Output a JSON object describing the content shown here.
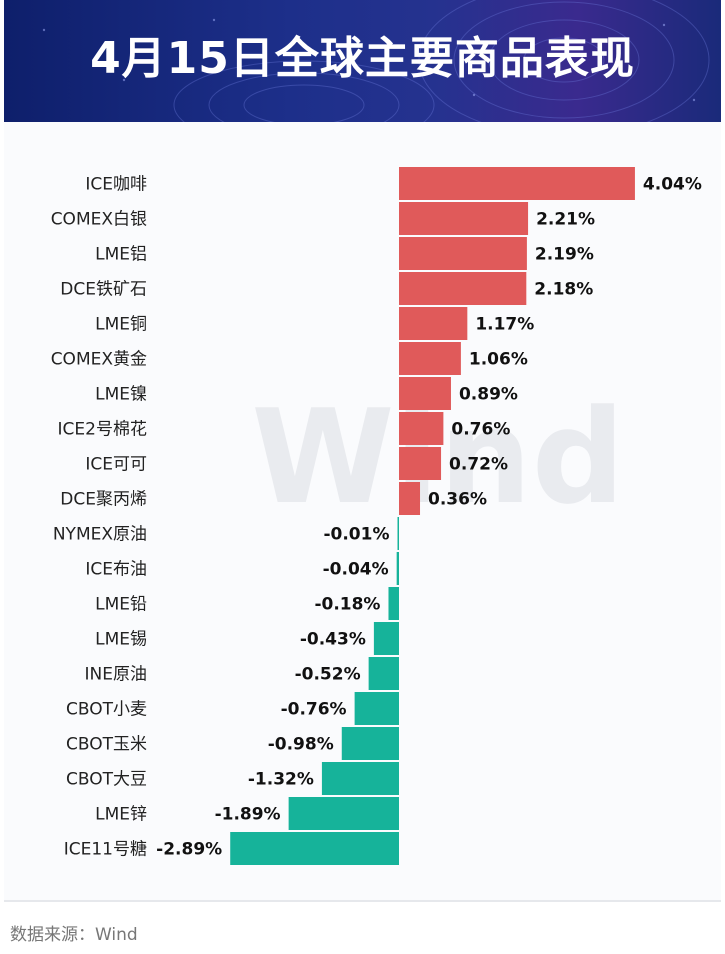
{
  "title": "4月15日全球主要商品表现",
  "source": "数据来源：Wind",
  "watermark": "Wind",
  "colors": {
    "positive": "#e05a5a",
    "negative": "#16b39a",
    "banner": "#1d2f8a"
  },
  "chart_data": {
    "type": "bar",
    "orientation": "horizontal",
    "unit": "%",
    "categories": [
      "ICE咖啡",
      "COMEX白银",
      "LME铝",
      "DCE铁矿石",
      "LME铜",
      "COMEX黄金",
      "LME镍",
      "ICE2号棉花",
      "ICE可可",
      "DCE聚丙烯",
      "NYMEX原油",
      "ICE布油",
      "LME铅",
      "LME锡",
      "INE原油",
      "CBOT小麦",
      "CBOT玉米",
      "CBOT大豆",
      "LME锌",
      "ICE11号糖"
    ],
    "values": [
      4.04,
      2.21,
      2.19,
      2.18,
      1.17,
      1.06,
      0.89,
      0.76,
      0.72,
      0.36,
      -0.01,
      -0.04,
      -0.18,
      -0.43,
      -0.52,
      -0.76,
      -0.98,
      -1.32,
      -1.89,
      -2.89
    ],
    "labels": [
      "4.04%",
      "2.21%",
      "2.19%",
      "2.18%",
      "1.17%",
      "1.06%",
      "0.89%",
      "0.76%",
      "0.72%",
      "0.36%",
      "-0.01%",
      "-0.04%",
      "-0.18%",
      "-0.43%",
      "-0.52%",
      "-0.76%",
      "-0.98%",
      "-1.32%",
      "-1.89%",
      "-2.89%"
    ],
    "grid": false,
    "legend": "none"
  }
}
